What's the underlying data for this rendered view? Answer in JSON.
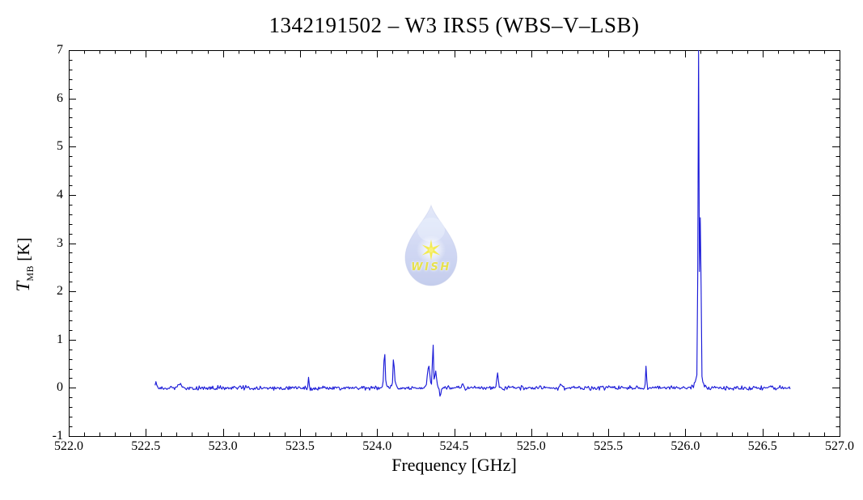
{
  "plot": {
    "title": "1342191502 – W3 IRS5 (WBS–V–LSB)",
    "x_axis": {
      "label": "Frequency [GHz]",
      "tick_labels": [
        "522.0",
        "522.5",
        "523.0",
        "523.5",
        "524.0",
        "524.5",
        "525.0",
        "525.5",
        "526.0",
        "526.5",
        "527.0"
      ],
      "tick_values": [
        522.0,
        522.5,
        523.0,
        523.5,
        524.0,
        524.5,
        525.0,
        525.5,
        526.0,
        526.5,
        527.0
      ],
      "minor_tick_step": 0.1
    },
    "y_axis": {
      "label_symbol": "T",
      "label_subscript": "MB",
      "label_unit": "[K]",
      "tick_labels": [
        "-1",
        "0",
        "1",
        "2",
        "3",
        "4",
        "5",
        "6",
        "7"
      ],
      "tick_values": [
        -1,
        0,
        1,
        2,
        3,
        4,
        5,
        6,
        7
      ],
      "minor_tick_step": 0.2
    }
  },
  "watermark": {
    "text": "WISH",
    "star_color": "#f2e93c",
    "text_color": "#e3dc35",
    "drop_color_top": "#ccd6f3",
    "drop_color_bottom": "#95a5de"
  },
  "chart_data": {
    "type": "line",
    "title": "1342191502 – W3 IRS5 (WBS–V–LSB)",
    "xlabel": "Frequency [GHz]",
    "ylabel": "T_MB [K]",
    "xlim": [
      522.0,
      527.0
    ],
    "ylim": [
      -1,
      7
    ],
    "grid": false,
    "legend": false,
    "line_color": "#1b1bd8",
    "axis_color": "#000000",
    "spectrum": {
      "start_ghz": 522.56,
      "end_ghz": 526.68,
      "channel_ghz": 0.0055,
      "baseline_k": 0.0,
      "noise_sigma_k": 0.022,
      "peaks": [
        {
          "x_ghz": 522.565,
          "peak_k": 0.14,
          "sigma_ghz": 0.003
        },
        {
          "x_ghz": 522.72,
          "peak_k": 0.06,
          "sigma_ghz": 0.01
        },
        {
          "x_ghz": 523.555,
          "peak_k": 0.22,
          "sigma_ghz": 0.003
        },
        {
          "x_ghz": 523.568,
          "peak_k": -0.07,
          "sigma_ghz": 0.004
        },
        {
          "x_ghz": 524.048,
          "peak_k": 0.62,
          "sigma_ghz": 0.004
        },
        {
          "x_ghz": 524.048,
          "peak_k": 0.07,
          "sigma_ghz": 0.013
        },
        {
          "x_ghz": 524.108,
          "peak_k": 0.52,
          "sigma_ghz": 0.004
        },
        {
          "x_ghz": 524.108,
          "peak_k": 0.06,
          "sigma_ghz": 0.013
        },
        {
          "x_ghz": 524.335,
          "peak_k": 0.45,
          "sigma_ghz": 0.008
        },
        {
          "x_ghz": 524.362,
          "peak_k": 0.88,
          "sigma_ghz": 0.0035
        },
        {
          "x_ghz": 524.38,
          "peak_k": 0.35,
          "sigma_ghz": 0.006
        },
        {
          "x_ghz": 524.41,
          "peak_k": -0.18,
          "sigma_ghz": 0.004
        },
        {
          "x_ghz": 524.555,
          "peak_k": 0.09,
          "sigma_ghz": 0.005
        },
        {
          "x_ghz": 524.782,
          "peak_k": 0.31,
          "sigma_ghz": 0.0045
        },
        {
          "x_ghz": 525.19,
          "peak_k": 0.1,
          "sigma_ghz": 0.004
        },
        {
          "x_ghz": 525.745,
          "peak_k": 0.45,
          "sigma_ghz": 0.0033
        },
        {
          "x_ghz": 526.085,
          "peak_k": 6.75,
          "sigma_ghz": 0.0033
        },
        {
          "x_ghz": 526.099,
          "peak_k": 3.3,
          "sigma_ghz": 0.0028
        },
        {
          "x_ghz": 526.09,
          "peak_k": 0.25,
          "sigma_ghz": 0.02
        }
      ]
    }
  }
}
